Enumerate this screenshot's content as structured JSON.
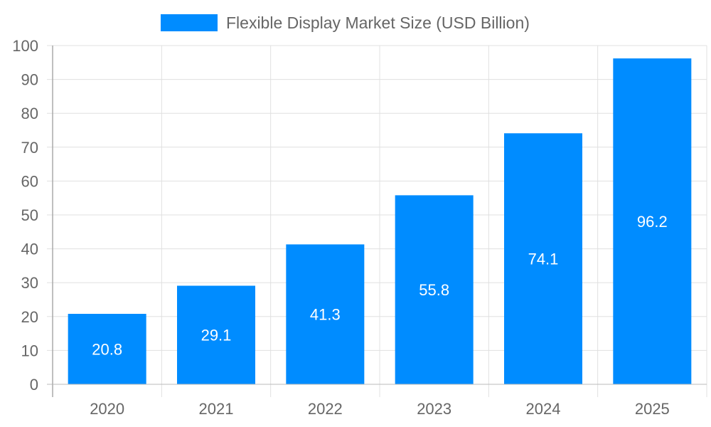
{
  "chart_data": {
    "type": "bar",
    "categories": [
      "2020",
      "2021",
      "2022",
      "2023",
      "2024",
      "2025"
    ],
    "series": [
      {
        "name": "Flexible Display Market Size (USD Billion)",
        "values": [
          20.8,
          29.1,
          41.3,
          55.8,
          74.1,
          96.2
        ],
        "color": "#008cff"
      }
    ],
    "data_labels": [
      "20.8",
      "29.1",
      "41.3",
      "55.8",
      "74.1",
      "96.2"
    ],
    "title": "",
    "xlabel": "",
    "ylabel": "",
    "ylim": [
      0,
      100
    ],
    "yticks": [
      "0",
      "10",
      "20",
      "30",
      "40",
      "50",
      "60",
      "70",
      "80",
      "90",
      "100"
    ],
    "grid": true,
    "legend_position": "top"
  }
}
